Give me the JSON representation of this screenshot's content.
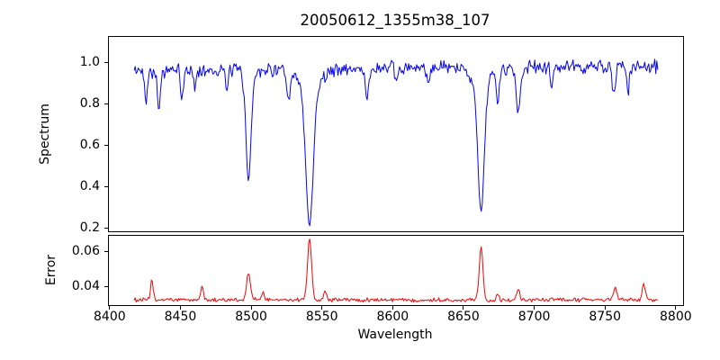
{
  "figure": {
    "title": "20050612_1355m38_107",
    "background_color": "#ffffff",
    "text_color": "#000000",
    "spine_color": "#000000"
  },
  "x_axis": {
    "label": "Wavelength",
    "xlim": [
      8398.5,
      8805.5
    ],
    "ticks": [
      8400,
      8450,
      8500,
      8550,
      8600,
      8650,
      8700,
      8750,
      8800
    ]
  },
  "chart_data": [
    {
      "type": "line",
      "name": "spectrum",
      "ylabel": "Spectrum",
      "color": "#0404f5",
      "xlim": [
        8398.5,
        8805.5
      ],
      "ylim": [
        0.179,
        1.128
      ],
      "yticks": [
        1.0,
        0.8,
        0.6,
        0.4,
        0.2
      ],
      "ytick_decimals": 1,
      "grid": false,
      "legend": "none",
      "x_data_start": 8417,
      "x_data_end": 8787,
      "continuum_level": 0.97,
      "continuum_slope_per_angstrom": 6e-05,
      "noise_amplitude": 0.021,
      "n_points": 520,
      "seed": 42,
      "absorption_lines": [
        {
          "center": 8425.4,
          "depth": 0.14,
          "sigma": 0.9
        },
        {
          "center": 8434.5,
          "depth": 0.18,
          "sigma": 1.1
        },
        {
          "center": 8450.8,
          "depth": 0.15,
          "sigma": 0.9
        },
        {
          "center": 8460.0,
          "depth": 0.095,
          "sigma": 0.8
        },
        {
          "center": 8482.5,
          "depth": 0.1,
          "sigma": 0.9
        },
        {
          "center": 8497.8,
          "depth": 0.524,
          "sigma": 1.9
        },
        {
          "center": 8526.0,
          "depth": 0.154,
          "sigma": 1.3
        },
        {
          "center": 8540.9,
          "depth": 0.65,
          "sigma": 2.6
        },
        {
          "center": 8540.9,
          "depth": 0.1,
          "sigma": 7.0
        },
        {
          "center": 8581.7,
          "depth": 0.14,
          "sigma": 1.2
        },
        {
          "center": 8602.5,
          "depth": 0.073,
          "sigma": 0.9
        },
        {
          "center": 8625.0,
          "depth": 0.06,
          "sigma": 0.9
        },
        {
          "center": 8662.1,
          "depth": 0.62,
          "sigma": 2.2
        },
        {
          "center": 8662.1,
          "depth": 0.08,
          "sigma": 6.0
        },
        {
          "center": 8674.0,
          "depth": 0.16,
          "sigma": 1.1
        },
        {
          "center": 8688.4,
          "depth": 0.22,
          "sigma": 1.4
        },
        {
          "center": 8712.0,
          "depth": 0.09,
          "sigma": 1.0
        },
        {
          "center": 8756.0,
          "depth": 0.14,
          "sigma": 1.1
        },
        {
          "center": 8766.0,
          "depth": 0.12,
          "sigma": 1.0
        }
      ]
    },
    {
      "type": "line",
      "name": "error",
      "ylabel": "Error",
      "color": "#f50404",
      "xlim": [
        8398.5,
        8805.5
      ],
      "ylim": [
        0.0287,
        0.0694
      ],
      "yticks": [
        0.06,
        0.04
      ],
      "ytick_decimals": 2,
      "grid": false,
      "legend": "none",
      "x_data_start": 8417,
      "x_data_end": 8787,
      "baseline": 0.0322,
      "noise_amplitude": 0.0007,
      "n_points": 520,
      "seed": 1234,
      "peaks": [
        {
          "center": 8429.5,
          "height": 0.0114,
          "sigma": 0.9
        },
        {
          "center": 8465.0,
          "height": 0.0083,
          "sigma": 0.9
        },
        {
          "center": 8497.8,
          "height": 0.0155,
          "sigma": 1.3
        },
        {
          "center": 8508.0,
          "height": 0.005,
          "sigma": 0.8
        },
        {
          "center": 8540.9,
          "height": 0.036,
          "sigma": 1.4
        },
        {
          "center": 8552.0,
          "height": 0.005,
          "sigma": 0.9
        },
        {
          "center": 8662.1,
          "height": 0.0303,
          "sigma": 1.3
        },
        {
          "center": 8674.0,
          "height": 0.004,
          "sigma": 0.8
        },
        {
          "center": 8688.4,
          "height": 0.006,
          "sigma": 1.1
        },
        {
          "center": 8757.0,
          "height": 0.0073,
          "sigma": 1.2
        },
        {
          "center": 8777.0,
          "height": 0.0093,
          "sigma": 1.1
        }
      ]
    }
  ]
}
